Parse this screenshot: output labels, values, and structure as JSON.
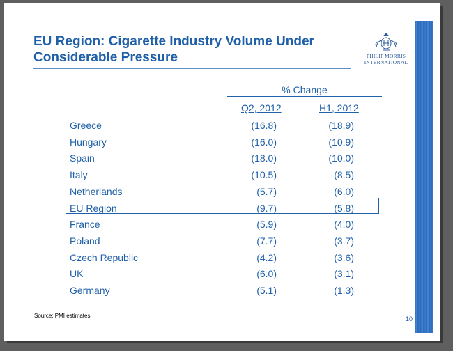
{
  "slide": {
    "title": "EU Region: Cigarette Industry Volume Under Considerable Pressure",
    "logo_line1": "PHILIP MORRIS",
    "logo_line2": "INTERNATIONAL",
    "source": "Source: PMI estimates",
    "page_number": "10",
    "accent_color": "#1f60a8"
  },
  "table": {
    "group_header": "% Change",
    "columns": [
      "Q2, 2012",
      "H1, 2012"
    ],
    "rows": [
      {
        "country": "Greece",
        "q2": "(16.8)",
        "h1": "(18.9)"
      },
      {
        "country": "Hungary",
        "q2": "(16.0)",
        "h1": "(10.9)"
      },
      {
        "country": "Spain",
        "q2": "(18.0)",
        "h1": "(10.0)"
      },
      {
        "country": "Italy",
        "q2": "(10.5)",
        "h1": "(8.5)"
      },
      {
        "country": "Netherlands",
        "q2": "(5.7)",
        "h1": "(6.0)"
      },
      {
        "country": "EU Region",
        "q2": "(9.7)",
        "h1": "(5.8)"
      },
      {
        "country": "France",
        "q2": "(5.9)",
        "h1": "(4.0)"
      },
      {
        "country": "Poland",
        "q2": "(7.7)",
        "h1": "(3.7)"
      },
      {
        "country": "Czech Republic",
        "q2": "(4.2)",
        "h1": "(3.6)"
      },
      {
        "country": "UK",
        "q2": "(6.0)",
        "h1": "(3.1)"
      },
      {
        "country": "Germany",
        "q2": "(5.1)",
        "h1": "(1.3)"
      }
    ]
  }
}
